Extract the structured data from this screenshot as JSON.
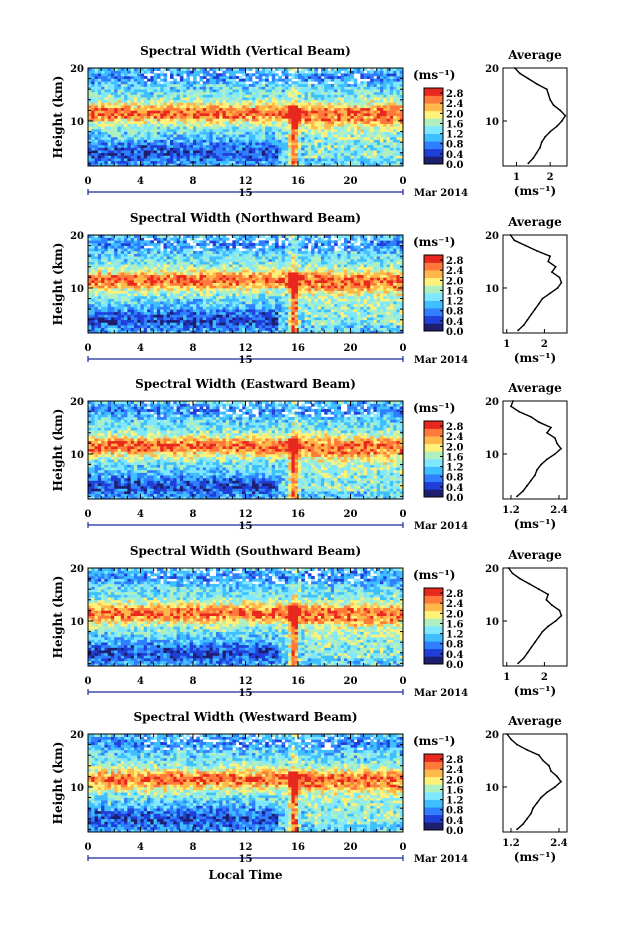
{
  "figure": {
    "x_axis_label": "Local Time",
    "month_label": "Mar 2014",
    "day_label": "15",
    "y_axis_label": "Height (km)",
    "colorbar_unit": "(ms⁻¹)",
    "avg_title": "Average",
    "avg_xlabel": "(ms⁻¹)"
  },
  "colors": {
    "scale": [
      "#1e1e6e",
      "#1f3fd8",
      "#2f7fff",
      "#3fbfff",
      "#7fe7ff",
      "#b0f0c0",
      "#fff27a",
      "#ffb84a",
      "#ff7a3a",
      "#e8281e"
    ]
  },
  "chart_data": [
    {
      "type": "heatmap",
      "title": "Spectral Width (Vertical Beam)",
      "xlabel": "Local Time",
      "ylabel": "Height (km)",
      "x_ticks": [
        "0",
        "4",
        "8",
        "12",
        "16",
        "20",
        "0"
      ],
      "xlim": [
        0,
        24
      ],
      "y_ticks": [
        "10",
        "20"
      ],
      "ylim": [
        1.5,
        20
      ],
      "colorbar": {
        "label": "(ms⁻¹)",
        "ticks": [
          "2.8",
          "2.4",
          "2.0",
          "1.6",
          "1.2",
          "0.8",
          "0.4",
          "0.0"
        ],
        "range": [
          0,
          3.0
        ]
      },
      "average": {
        "title": "Average",
        "xlabel": "(ms⁻¹)",
        "x_ticks": [
          "1",
          "2"
        ],
        "xlim": [
          0.6,
          2.5
        ],
        "y_ticks": [
          "10",
          "20"
        ],
        "height": [
          2,
          3,
          4,
          5,
          6,
          7,
          8,
          9,
          10,
          11,
          12,
          13,
          14,
          15,
          16,
          17,
          18,
          19,
          20
        ],
        "width": [
          1.35,
          1.5,
          1.6,
          1.7,
          1.75,
          1.85,
          2.0,
          2.2,
          2.35,
          2.45,
          2.3,
          2.1,
          2.0,
          1.95,
          1.9,
          1.6,
          1.35,
          1.1,
          0.95
        ]
      }
    },
    {
      "type": "heatmap",
      "title": "Spectral Width (Northward Beam)",
      "xlabel": "Local Time",
      "ylabel": "Height (km)",
      "x_ticks": [
        "0",
        "4",
        "8",
        "12",
        "16",
        "20",
        "0"
      ],
      "xlim": [
        0,
        24
      ],
      "y_ticks": [
        "10",
        "20"
      ],
      "ylim": [
        1.5,
        20
      ],
      "colorbar": {
        "label": "(ms⁻¹)",
        "ticks": [
          "2.8",
          "2.4",
          "2.0",
          "1.6",
          "1.2",
          "0.8",
          "0.4",
          "0.0"
        ],
        "range": [
          0,
          3.0
        ]
      },
      "average": {
        "title": "Average",
        "xlabel": "(ms⁻¹)",
        "x_ticks": [
          "1",
          "2"
        ],
        "xlim": [
          0.9,
          2.6
        ],
        "y_ticks": [
          "10",
          "20"
        ],
        "height": [
          2,
          3,
          4,
          5,
          6,
          7,
          8,
          9,
          10,
          11,
          12,
          13,
          14,
          15,
          16,
          17,
          18,
          19,
          20
        ],
        "width": [
          1.3,
          1.45,
          1.55,
          1.65,
          1.75,
          1.85,
          1.95,
          2.15,
          2.35,
          2.45,
          2.4,
          2.2,
          2.3,
          2.1,
          2.15,
          1.8,
          1.5,
          1.2,
          1.1
        ]
      }
    },
    {
      "type": "heatmap",
      "title": "Spectral Width (Eastward Beam)",
      "xlabel": "Local Time",
      "ylabel": "Height (km)",
      "x_ticks": [
        "0",
        "4",
        "8",
        "12",
        "16",
        "20",
        "0"
      ],
      "xlim": [
        0,
        24
      ],
      "y_ticks": [
        "10",
        "20"
      ],
      "ylim": [
        1.5,
        20
      ],
      "colorbar": {
        "label": "(ms⁻¹)",
        "ticks": [
          "2.8",
          "2.4",
          "2.0",
          "1.6",
          "1.2",
          "0.8",
          "0.4",
          "0.0"
        ],
        "range": [
          0,
          3.0
        ]
      },
      "average": {
        "title": "Average",
        "xlabel": "(ms⁻¹)",
        "x_ticks": [
          "1.2",
          "2.4"
        ],
        "xlim": [
          1.0,
          2.6
        ],
        "y_ticks": [
          "10",
          "20"
        ],
        "height": [
          2,
          3,
          4,
          5,
          6,
          7,
          8,
          9,
          10,
          11,
          12,
          13,
          14,
          15,
          16,
          17,
          18,
          19,
          20
        ],
        "width": [
          1.35,
          1.5,
          1.6,
          1.7,
          1.8,
          1.85,
          1.95,
          2.1,
          2.3,
          2.45,
          2.35,
          2.3,
          2.1,
          2.2,
          1.9,
          1.7,
          1.4,
          1.2,
          1.25
        ]
      }
    },
    {
      "type": "heatmap",
      "title": "Spectral Width (Southward Beam)",
      "xlabel": "Local Time",
      "ylabel": "Height (km)",
      "x_ticks": [
        "0",
        "4",
        "8",
        "12",
        "16",
        "20",
        "0"
      ],
      "xlim": [
        0,
        24
      ],
      "y_ticks": [
        "10",
        "20"
      ],
      "ylim": [
        1.5,
        20
      ],
      "colorbar": {
        "label": "(ms⁻¹)",
        "ticks": [
          "2.8",
          "2.4",
          "2.0",
          "1.6",
          "1.2",
          "0.8",
          "0.4",
          "0.0"
        ],
        "range": [
          0,
          3.0
        ]
      },
      "average": {
        "title": "Average",
        "xlabel": "(ms⁻¹)",
        "x_ticks": [
          "1",
          "2"
        ],
        "xlim": [
          0.9,
          2.6
        ],
        "y_ticks": [
          "10",
          "20"
        ],
        "height": [
          2,
          3,
          4,
          5,
          6,
          7,
          8,
          9,
          10,
          11,
          12,
          13,
          14,
          15,
          16,
          17,
          18,
          19,
          20
        ],
        "width": [
          1.3,
          1.45,
          1.55,
          1.65,
          1.75,
          1.85,
          1.95,
          2.1,
          2.3,
          2.45,
          2.4,
          2.2,
          2.05,
          2.1,
          1.85,
          1.6,
          1.35,
          1.15,
          1.05
        ]
      }
    },
    {
      "type": "heatmap",
      "title": "Spectral Width (Westward Beam)",
      "xlabel": "Local Time",
      "ylabel": "Height (km)",
      "x_ticks": [
        "0",
        "4",
        "8",
        "12",
        "16",
        "20",
        "0"
      ],
      "xlim": [
        0,
        24
      ],
      "y_ticks": [
        "10",
        "20"
      ],
      "ylim": [
        1.5,
        20
      ],
      "colorbar": {
        "label": "(ms⁻¹)",
        "ticks": [
          "2.8",
          "2.4",
          "2.0",
          "1.6",
          "1.2",
          "0.8",
          "0.4",
          "0.0"
        ],
        "range": [
          0,
          3.0
        ]
      },
      "average": {
        "title": "Average",
        "xlabel": "(ms⁻¹)",
        "x_ticks": [
          "1.2",
          "2.4"
        ],
        "xlim": [
          1.0,
          2.6
        ],
        "y_ticks": [
          "10",
          "20"
        ],
        "height": [
          2,
          3,
          4,
          5,
          6,
          7,
          8,
          9,
          10,
          11,
          12,
          13,
          14,
          15,
          16,
          17,
          18,
          19,
          20
        ],
        "width": [
          1.35,
          1.5,
          1.6,
          1.7,
          1.75,
          1.85,
          1.95,
          2.1,
          2.3,
          2.45,
          2.35,
          2.2,
          2.15,
          2.0,
          1.9,
          1.6,
          1.35,
          1.2,
          1.1
        ]
      }
    }
  ]
}
